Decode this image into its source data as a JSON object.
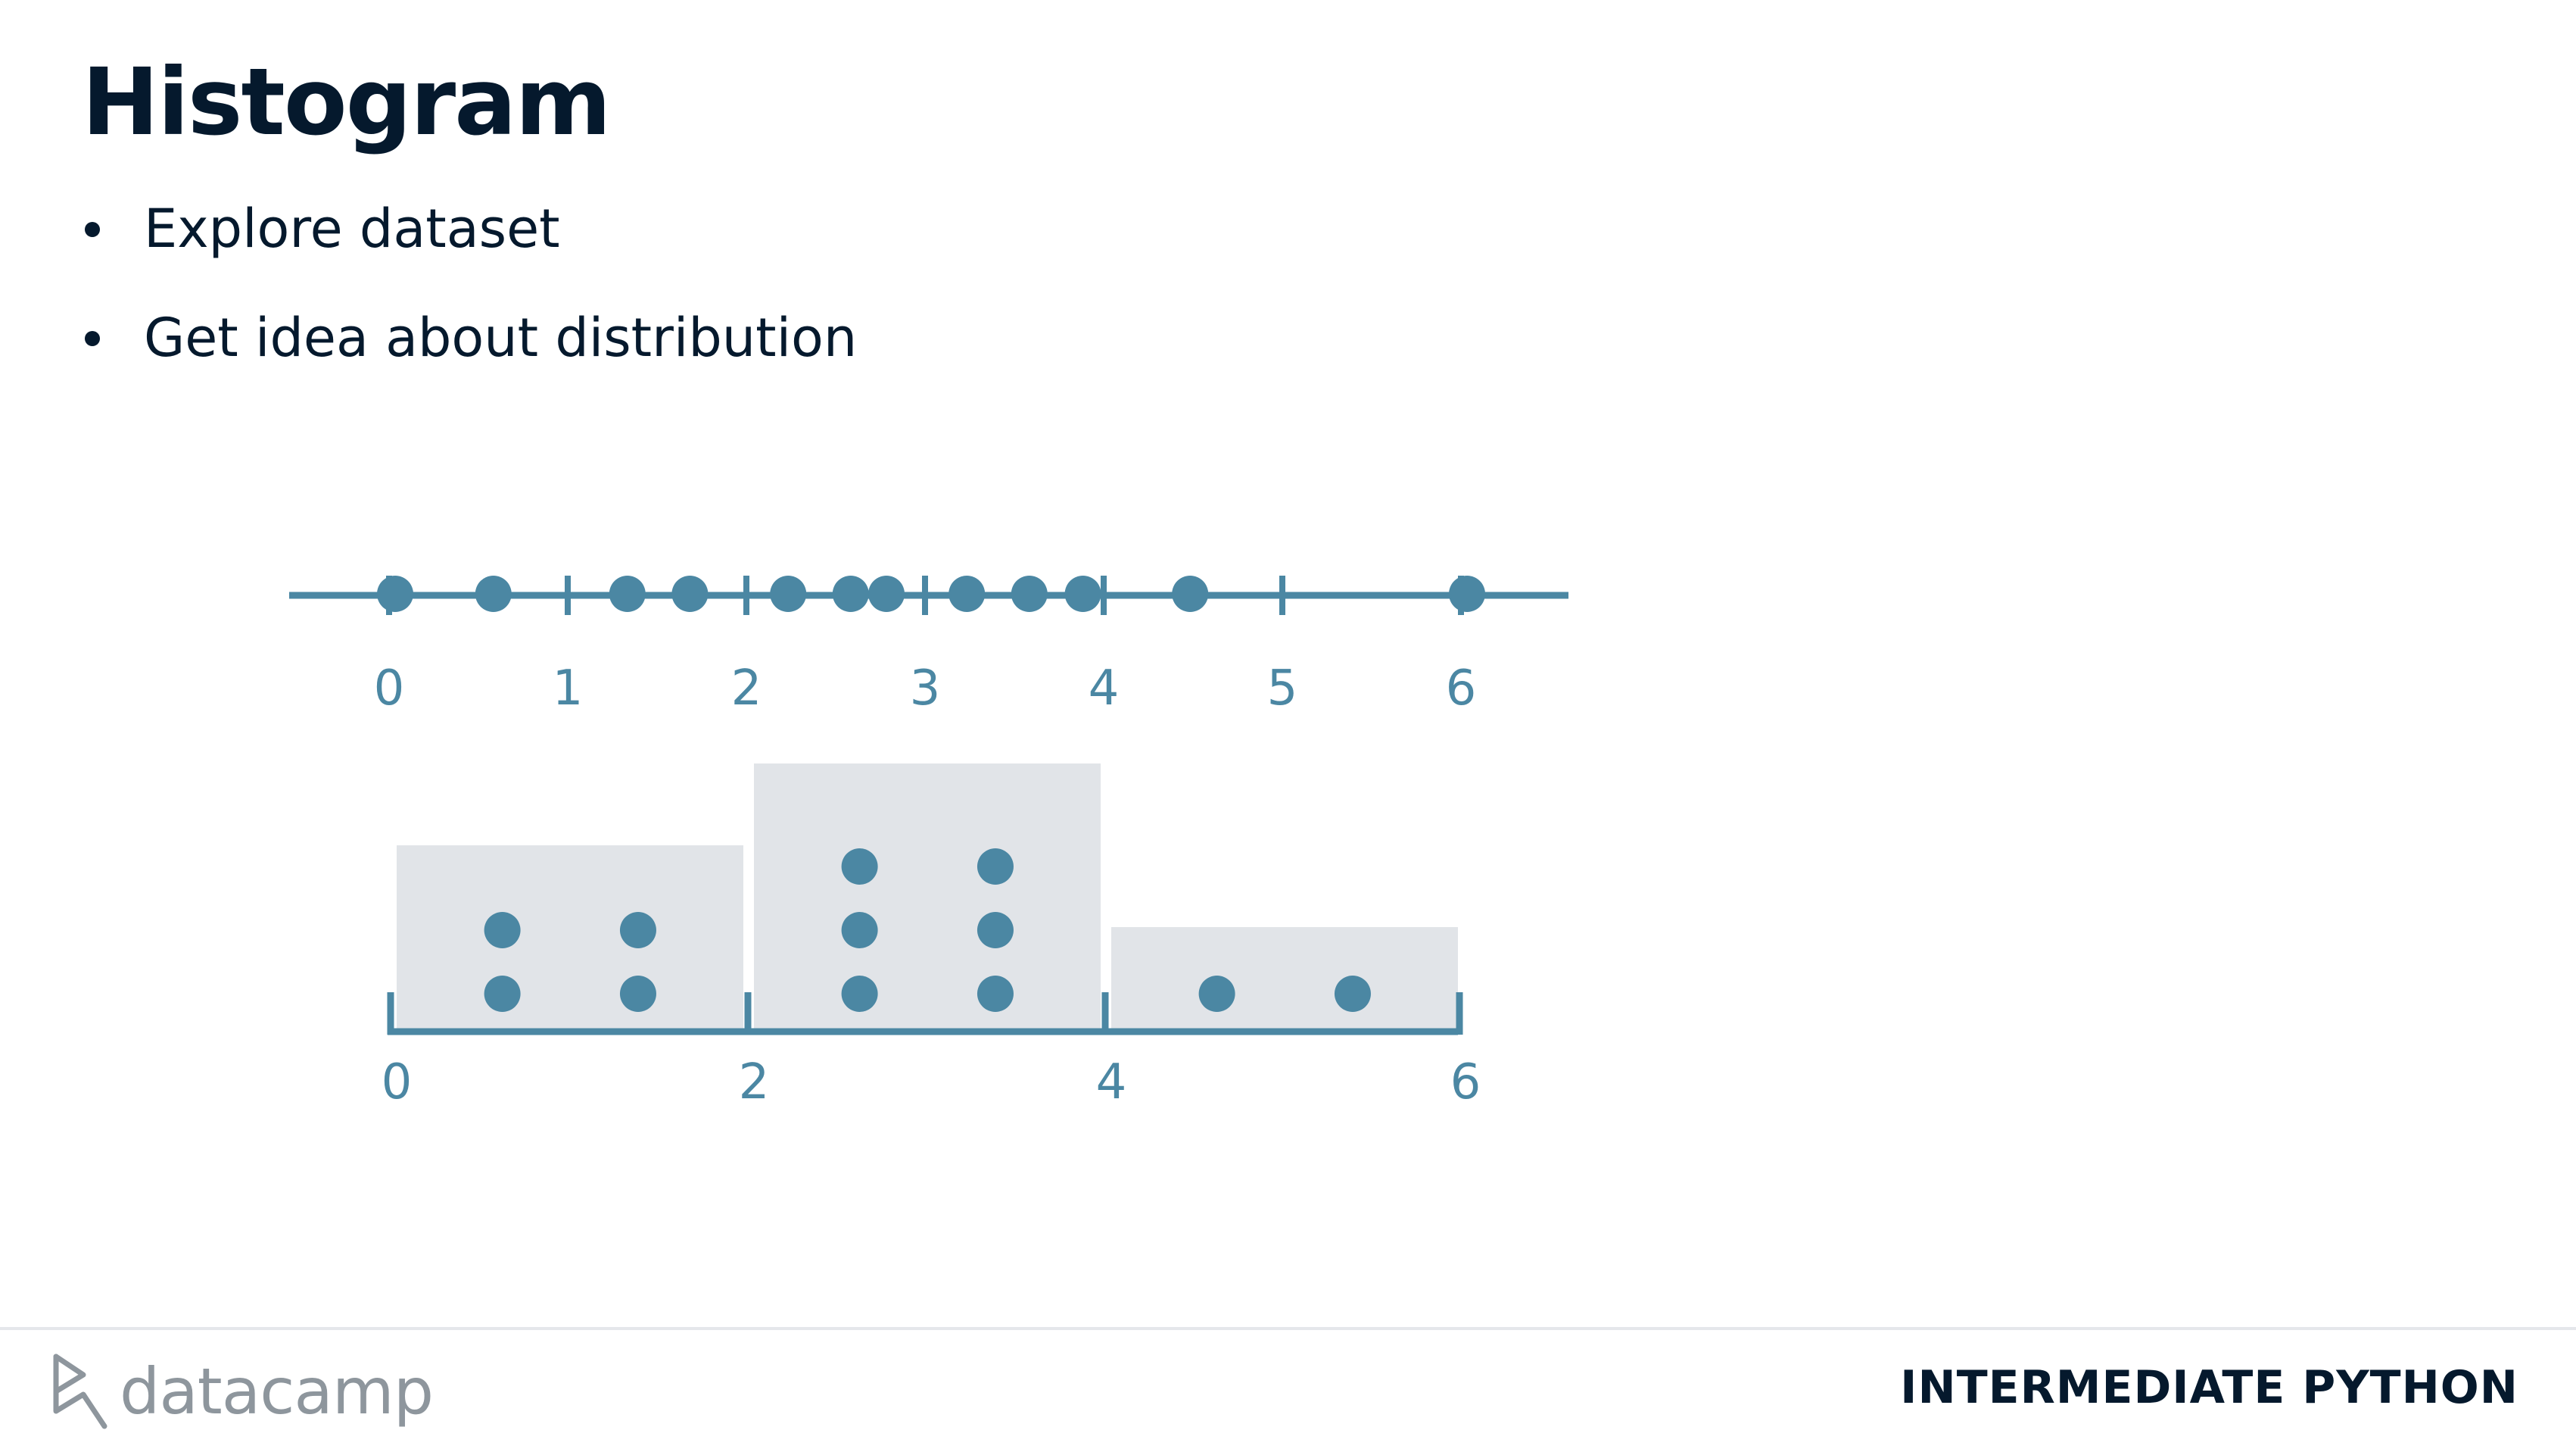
{
  "slide": {
    "title": "Histogram",
    "bullets": [
      "Explore dataset",
      "Get idea about distribution"
    ]
  },
  "diagram": {
    "color": "#4b87a3",
    "bin_fill": "#e1e4e8",
    "number_line": {
      "tick_labels": [
        "0",
        "1",
        "2",
        "3",
        "4",
        "5",
        "6"
      ],
      "points": [
        0.0,
        0.55,
        1.3,
        1.65,
        2.2,
        2.55,
        2.75,
        3.2,
        3.55,
        3.85,
        4.45,
        6.0
      ]
    },
    "histogram": {
      "tick_labels": [
        "0",
        "2",
        "4",
        "6"
      ],
      "bins": [
        {
          "start": 0,
          "end": 2,
          "count": 4
        },
        {
          "start": 2,
          "end": 4,
          "count": 6
        },
        {
          "start": 4,
          "end": 6,
          "count": 2
        }
      ]
    }
  },
  "footer": {
    "brand": "datacamp",
    "course": "INTERMEDIATE PYTHON"
  }
}
